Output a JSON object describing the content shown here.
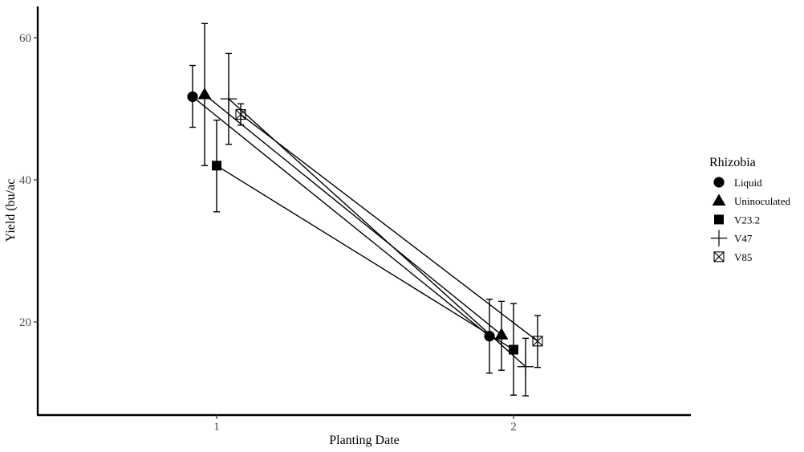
{
  "chart_data": {
    "type": "line",
    "title": "",
    "xlabel": "Planting Date",
    "ylabel": "Yield (bu/ac",
    "categories": [
      "1",
      "2"
    ],
    "ylim": [
      7,
      65
    ],
    "yticks": [
      20,
      40,
      60
    ],
    "grid": false,
    "legend": {
      "title": "Rhizobia",
      "position": "right"
    },
    "series": [
      {
        "name": "Liquid",
        "shape": "circle",
        "values": [
          51.7,
          18.0
        ],
        "errors": [
          [
            47.4,
            56.1
          ],
          [
            12.8,
            23.2
          ]
        ]
      },
      {
        "name": "Uninoculated",
        "shape": "triangle",
        "values": [
          52.0,
          18.2
        ],
        "errors": [
          [
            42.0,
            62.0
          ],
          [
            13.2,
            22.9
          ]
        ]
      },
      {
        "name": "V23.2",
        "shape": "square",
        "values": [
          42.0,
          16.1
        ],
        "errors": [
          [
            35.5,
            48.4
          ],
          [
            9.7,
            22.6
          ]
        ]
      },
      {
        "name": "V47",
        "shape": "plus",
        "values": [
          51.4,
          13.7
        ],
        "errors": [
          [
            45.0,
            57.8
          ],
          [
            9.6,
            17.7
          ]
        ]
      },
      {
        "name": "V85",
        "shape": "square-cross",
        "values": [
          49.2,
          17.3
        ],
        "errors": [
          [
            47.7,
            50.7
          ],
          [
            13.6,
            20.9
          ]
        ]
      }
    ]
  }
}
